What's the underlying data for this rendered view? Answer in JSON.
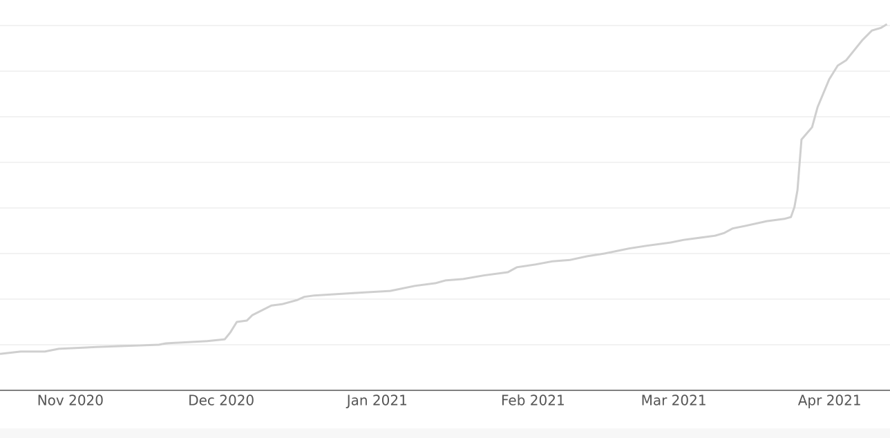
{
  "chart_data": {
    "type": "line",
    "x": [
      -14.0,
      -9.9,
      -5.1,
      -2.3,
      5.2,
      17.6,
      19.0,
      27.2,
      30.7,
      31.8,
      33.1,
      35.1,
      36.2,
      40.0,
      42.1,
      45.1,
      46.5,
      48.5,
      58.8,
      63.6,
      68.5,
      72.6,
      74.6,
      78.1,
      82.2,
      87.0,
      88.8,
      92.5,
      95.9,
      99.4,
      102.8,
      106.2,
      111.1,
      114.5,
      119.3,
      122.0,
      128.2,
      130.0,
      131.7,
      134.4,
      138.5,
      142.0,
      143.3,
      144.0,
      144.6,
      145.4,
      147.5,
      148.6,
      150.9,
      152.6,
      154.3,
      157.5,
      159.4,
      161.2,
      162.4
    ],
    "values": [
      0.8,
      0.85,
      0.85,
      0.91,
      0.95,
      1.0,
      1.03,
      1.08,
      1.12,
      1.27,
      1.5,
      1.53,
      1.65,
      1.86,
      1.89,
      1.98,
      2.05,
      2.08,
      2.15,
      2.18,
      2.29,
      2.35,
      2.41,
      2.44,
      2.52,
      2.59,
      2.7,
      2.76,
      2.83,
      2.86,
      2.94,
      3.0,
      3.11,
      3.17,
      3.24,
      3.3,
      3.39,
      3.45,
      3.55,
      3.61,
      3.71,
      3.76,
      3.8,
      4.02,
      4.39,
      5.5,
      5.77,
      6.21,
      6.82,
      7.12,
      7.24,
      7.68,
      7.89,
      7.95,
      8.03
    ],
    "color": "#cfcfcf",
    "xlim": [
      -14,
      163
    ],
    "xticks": [
      {
        "value": 0,
        "label": "Nov 2020"
      },
      {
        "value": 30,
        "label": "Dec 2020"
      },
      {
        "value": 61,
        "label": "Jan 2021"
      },
      {
        "value": 92,
        "label": "Feb 2021"
      },
      {
        "value": 120,
        "label": "Mar 2021"
      },
      {
        "value": 151,
        "label": "Apr 2021"
      }
    ],
    "ylim": [
      0,
      8.56
    ],
    "yticks": [
      1,
      2,
      3,
      4,
      5,
      6,
      7,
      8
    ],
    "grid": true
  }
}
